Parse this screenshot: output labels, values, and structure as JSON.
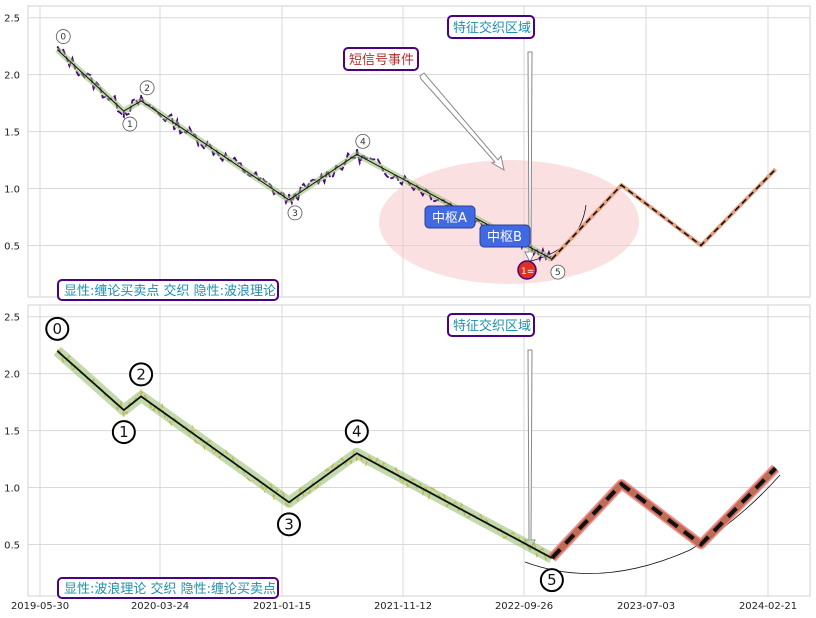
{
  "chart_data": {
    "type": "line",
    "x_tick_labels": [
      "2019-05-30",
      "2020-03-24",
      "2021-01-15",
      "2021-11-12",
      "2022-09-26",
      "2023-07-03",
      "2024-02-21"
    ],
    "y_ticks": [
      "0.5",
      "1.0",
      "1.5",
      "2.0",
      "2.5"
    ],
    "ylim": [
      0.1,
      2.55
    ],
    "grid": true,
    "panels": [
      {
        "legend_box": "显性:缠论买卖点 交织 隐性:波浪理论",
        "callouts": {
          "feature_zone": "特征交织区域",
          "short_signal": "短信号事件",
          "hub_a": "中枢A",
          "hub_b": "中枢B",
          "buy_point": "1="
        },
        "wave_points": [
          {
            "label": "0",
            "x": "2019-07-10",
            "y": 2.22
          },
          {
            "label": "1",
            "x": "2019-12-15",
            "y": 1.68
          },
          {
            "label": "2",
            "x": "2020-01-25",
            "y": 1.77
          },
          {
            "label": "3",
            "x": "2021-01-10",
            "y": 0.9
          },
          {
            "label": "4",
            "x": "2021-06-20",
            "y": 1.3
          },
          {
            "label": "5",
            "x": "2022-09-26",
            "y": 0.38
          }
        ],
        "projection": [
          {
            "x": "2022-09-26",
            "y": 0.38
          },
          {
            "x": "2023-03-10",
            "y": 1.03
          },
          {
            "x": "2023-09-15",
            "y": 0.5
          },
          {
            "x": "2024-03-10",
            "y": 1.17
          }
        ]
      },
      {
        "legend_box": "显性:波浪理论 交织 隐性:缠论买卖点",
        "callouts": {
          "feature_zone": "特征交织区域"
        },
        "wave_points": [
          {
            "label": "0",
            "x": "2019-07-10",
            "y": 2.2
          },
          {
            "label": "1",
            "x": "2019-12-15",
            "y": 1.68
          },
          {
            "label": "2",
            "x": "2020-01-25",
            "y": 1.8
          },
          {
            "label": "3",
            "x": "2021-01-10",
            "y": 0.87
          },
          {
            "label": "4",
            "x": "2021-06-20",
            "y": 1.3
          },
          {
            "label": "5",
            "x": "2022-09-26",
            "y": 0.38
          }
        ],
        "projection": [
          {
            "x": "2022-09-26",
            "y": 0.38
          },
          {
            "x": "2023-03-10",
            "y": 1.03
          },
          {
            "x": "2023-09-15",
            "y": 0.5
          },
          {
            "x": "2024-03-10",
            "y": 1.17
          }
        ]
      }
    ]
  },
  "colors": {
    "price_top": "#4b0082",
    "price_bottom": "#f0b432",
    "projection_top": "#e8a080",
    "projection_bottom_a": "#f08080",
    "projection_bottom_b": "#a0522d",
    "wave_band": "#8fbc6a",
    "ellipse": "#f5c6c6",
    "hub_fill": "#4169e1",
    "callout_border": "#4b0082",
    "callout_text_blue": "#1e8fb0",
    "callout_text_red": "#b03030",
    "buy_point": "#e03020"
  }
}
